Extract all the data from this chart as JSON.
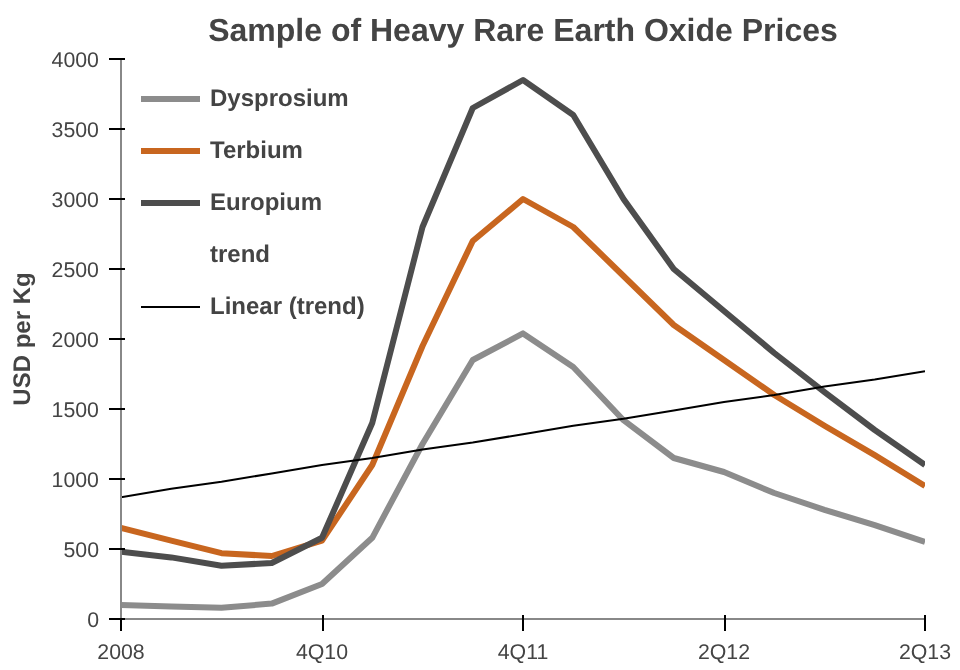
{
  "chart_data": {
    "type": "line",
    "title": "Sample of Heavy Rare Earth Oxide Prices",
    "ylabel": "USD per Kg",
    "categories": [
      "2008",
      null,
      null,
      null,
      "4Q10",
      null,
      null,
      null,
      "4Q11",
      null,
      null,
      null,
      "2Q12",
      null,
      null,
      null,
      "2Q13"
    ],
    "series": [
      {
        "name": "Dysprosium",
        "color": "#8c8c8c",
        "values": [
          100,
          90,
          80,
          110,
          250,
          580,
          1250,
          1850,
          2040,
          1800,
          1420,
          1150,
          1050,
          900,
          780,
          670,
          550
        ]
      },
      {
        "name": "Terbium",
        "color": "#c8661f",
        "values": [
          650,
          560,
          470,
          450,
          560,
          1100,
          1950,
          2700,
          3000,
          2800,
          2450,
          2100,
          1850,
          1600,
          1380,
          1170,
          950
        ]
      },
      {
        "name": "Europium",
        "color": "#4d4d4d",
        "values": [
          480,
          440,
          380,
          400,
          580,
          1400,
          2800,
          3650,
          3850,
          3600,
          3000,
          2500,
          2200,
          1900,
          1620,
          1350,
          1100
        ]
      },
      {
        "name": "Linear (trend)",
        "color": "#000000",
        "values": [
          870,
          930,
          980,
          1040,
          1100,
          1150,
          1210,
          1260,
          1320,
          1380,
          1430,
          1490,
          1550,
          1600,
          1660,
          1710,
          1770
        ]
      }
    ],
    "annotations": [
      "trend"
    ],
    "ylim": [
      0,
      4000
    ],
    "yticks": [
      0,
      500,
      1000,
      1500,
      2000,
      2500,
      3000,
      3500,
      4000
    ],
    "grid": false,
    "legend": "top left",
    "marker": "none"
  }
}
